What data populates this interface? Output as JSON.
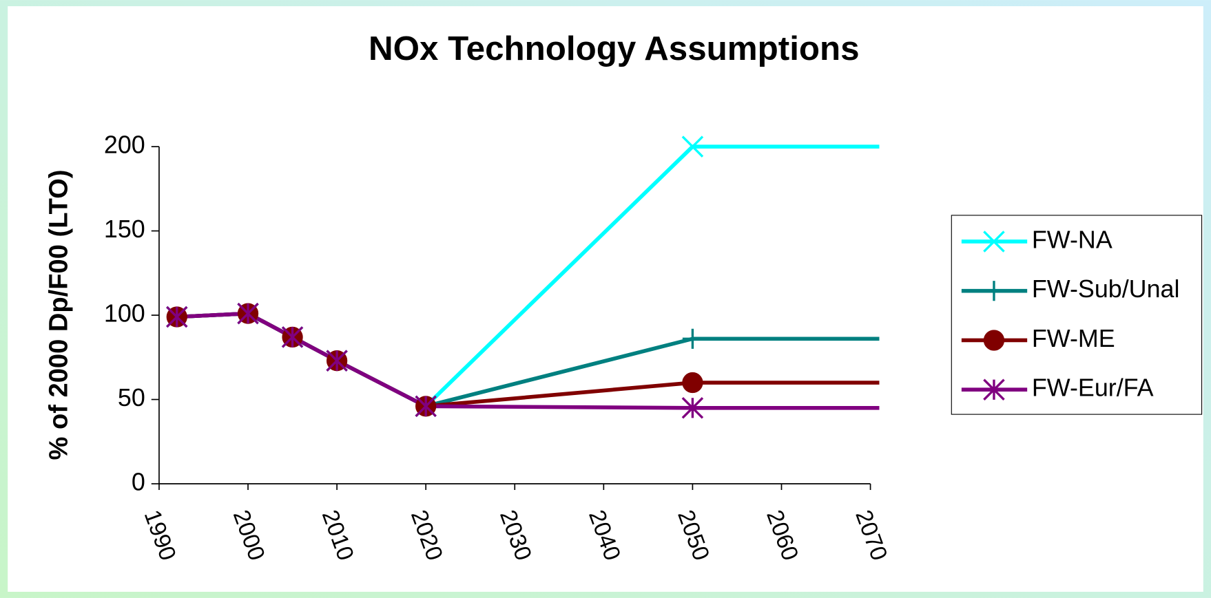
{
  "chart_data": {
    "type": "line",
    "title": "NOx Technology Assumptions",
    "y_label": "% of 2000 Dp/F00 (LTO)",
    "x": [
      1992,
      2000,
      2005,
      2010,
      2020,
      2050,
      2071
    ],
    "series": [
      {
        "name": "FW-NA",
        "color": "#00ffff",
        "marker": "x",
        "values": [
          99,
          101,
          87,
          73,
          46,
          200,
          200
        ]
      },
      {
        "name": "FW-Sub/Unal",
        "color": "#008080",
        "marker": "plus",
        "values": [
          99,
          101,
          87,
          73,
          46,
          86,
          86
        ]
      },
      {
        "name": "FW-ME",
        "color": "#800000",
        "marker": "circle",
        "values": [
          99,
          101,
          87,
          73,
          46,
          60,
          60
        ]
      },
      {
        "name": "FW-Eur/FA",
        "color": "#800080",
        "marker": "asterisk",
        "values": [
          99,
          101,
          87,
          73,
          46,
          45,
          45
        ]
      }
    ],
    "xlim": [
      1990,
      2070
    ],
    "xticks": [
      1990,
      2000,
      2010,
      2020,
      2030,
      2040,
      2050,
      2060,
      2070
    ],
    "ylim": [
      0,
      200
    ],
    "yticks": [
      0,
      50,
      100,
      150,
      200
    ],
    "legend": "right"
  }
}
